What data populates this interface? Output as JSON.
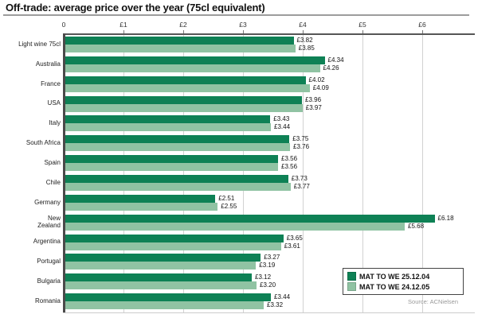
{
  "title": "Off-trade: average price over the year (75cl equivalent)",
  "source": "Source: ACNielsen",
  "colors": {
    "series_2004": "#0e8155",
    "series_2005": "#90c3a3",
    "axis": "#4a4a4a",
    "gridline": "#d2d2d2"
  },
  "legend": {
    "items": [
      {
        "label": "MAT TO WE 25.12.04",
        "color": "#0e8155"
      },
      {
        "label": "MAT TO WE 24.12.05",
        "color": "#90c3a3"
      }
    ]
  },
  "chart_data": {
    "type": "bar",
    "orientation": "horizontal",
    "title": "Off-trade: average price over the year (75cl equivalent)",
    "categories": [
      "Light wine 75cl",
      "Australia",
      "France",
      "USA",
      "Italy",
      "South Africa",
      "Spain",
      "Chile",
      "Germany",
      "New\nZealand",
      "Argentina",
      "Portugal",
      "Bulgaria",
      "Romania"
    ],
    "series": [
      {
        "name": "MAT TO WE 25.12.04",
        "color": "#0e8155",
        "values": [
          3.82,
          4.34,
          4.02,
          3.96,
          3.43,
          3.75,
          3.56,
          3.73,
          2.51,
          6.18,
          3.65,
          3.27,
          3.12,
          3.44
        ]
      },
      {
        "name": "MAT TO WE 24.12.05",
        "color": "#90c3a3",
        "values": [
          3.85,
          4.26,
          4.09,
          3.97,
          3.44,
          3.76,
          3.56,
          3.77,
          2.55,
          5.68,
          3.61,
          3.19,
          3.2,
          3.32
        ]
      }
    ],
    "value_prefix": "£",
    "value_decimals": 2,
    "x_ticks": [
      "0",
      "£1",
      "£2",
      "£3",
      "£4",
      "£5",
      "£6"
    ],
    "x_tick_values": [
      0,
      1,
      2,
      3,
      4,
      5,
      6
    ],
    "xlim": [
      0,
      6.87
    ],
    "grid": true,
    "legend_position": "bottom-right"
  }
}
